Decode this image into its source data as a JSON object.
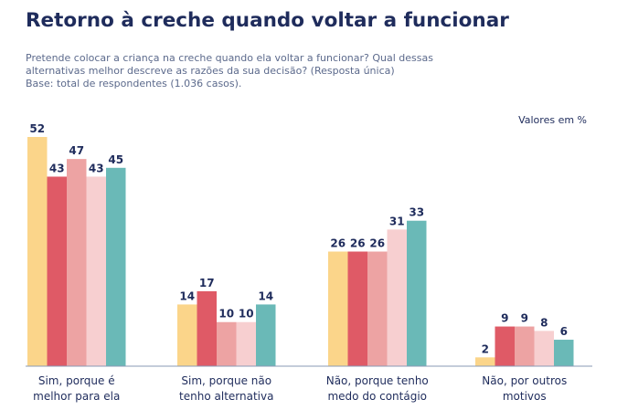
{
  "header": {
    "title": "Retorno à creche quando voltar a funcionar",
    "question_line1": "Pretende colocar a criança na creche quando ela voltar a funcionar? Qual dessas",
    "question_line2": "alternativas melhor descreve as razões da sua decisão? (Resposta única)",
    "base": "Base: total de respondentes (1.036 casos)."
  },
  "chart_data": {
    "type": "bar",
    "units_label": "Valores em %",
    "categories": [
      [
        "Sim, porque é",
        "melhor para ela"
      ],
      [
        "Sim, porque não",
        "tenho alternativa"
      ],
      [
        "Não, porque tenho",
        "medo do contágio"
      ],
      [
        "Não, por outros",
        "motivos"
      ]
    ],
    "series": [
      {
        "color": "#fbd58a",
        "values": [
          52,
          14,
          26,
          2
        ]
      },
      {
        "color": "#df5a66",
        "values": [
          43,
          17,
          26,
          9
        ]
      },
      {
        "color": "#eda3a3",
        "values": [
          47,
          10,
          26,
          9
        ]
      },
      {
        "color": "#f7cfd0",
        "values": [
          43,
          10,
          31,
          8
        ]
      },
      {
        "color": "#6ab9b7",
        "values": [
          45,
          14,
          33,
          6
        ]
      }
    ],
    "ylim": [
      0,
      52
    ],
    "axis_color": "#8a9ab5",
    "text_color": "#1f2c5c"
  }
}
